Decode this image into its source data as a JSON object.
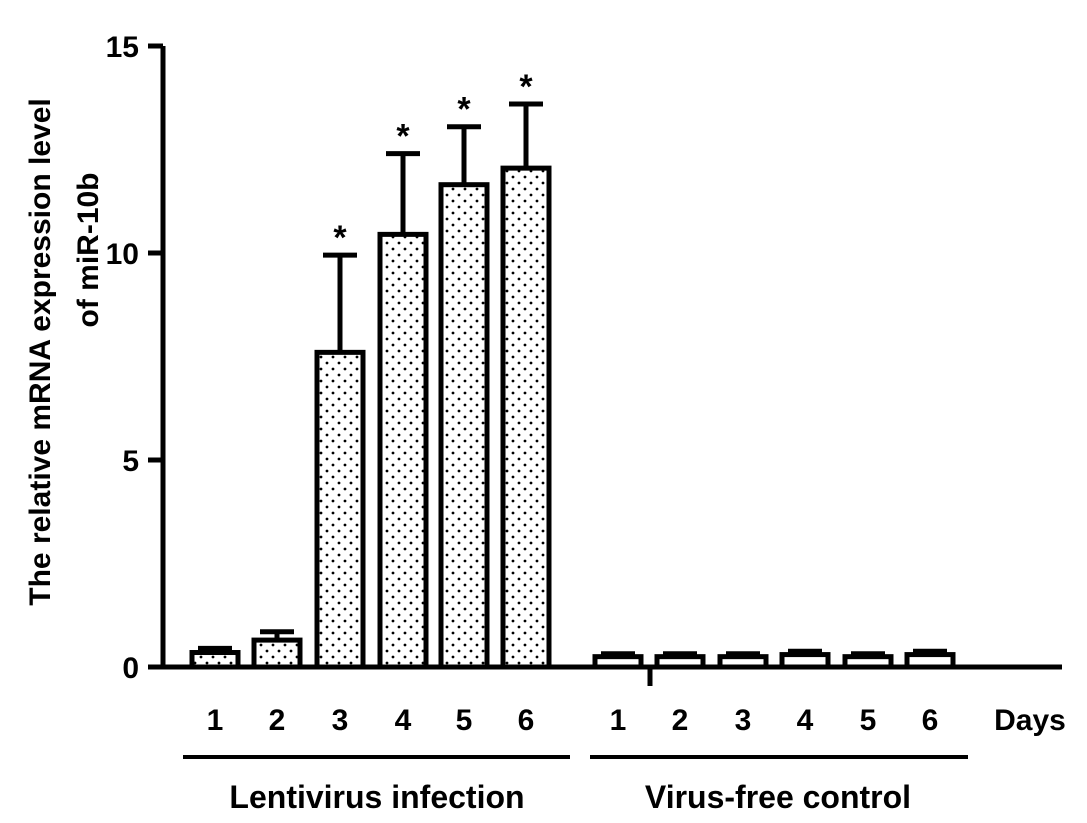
{
  "chart_data": {
    "type": "bar",
    "ylabel_line1": "The relative mRNA expression level",
    "ylabel_line2": "of miR-10b",
    "ylim": [
      0,
      15
    ],
    "yticks": [
      "0",
      "5",
      "10",
      "15"
    ],
    "x_unit_label": "Days",
    "groups": [
      {
        "label": "Lentivirus infection",
        "categories": [
          "1",
          "2",
          "3",
          "4",
          "5",
          "6"
        ],
        "values": [
          0.35,
          0.65,
          7.6,
          10.45,
          11.65,
          12.05
        ],
        "errors": [
          0.1,
          0.2,
          2.35,
          1.95,
          1.4,
          1.55
        ],
        "significance": [
          "",
          "",
          "*",
          "*",
          "*",
          "*"
        ],
        "fill": "dotted"
      },
      {
        "label": "Virus-free control",
        "categories": [
          "1",
          "2",
          "3",
          "4",
          "5",
          "6"
        ],
        "values": [
          0.25,
          0.25,
          0.25,
          0.3,
          0.25,
          0.3
        ],
        "errors": [
          0.07,
          0.07,
          0.07,
          0.08,
          0.07,
          0.08
        ],
        "significance": [
          "",
          "",
          "",
          "",
          "",
          ""
        ],
        "fill": "white"
      }
    ]
  }
}
